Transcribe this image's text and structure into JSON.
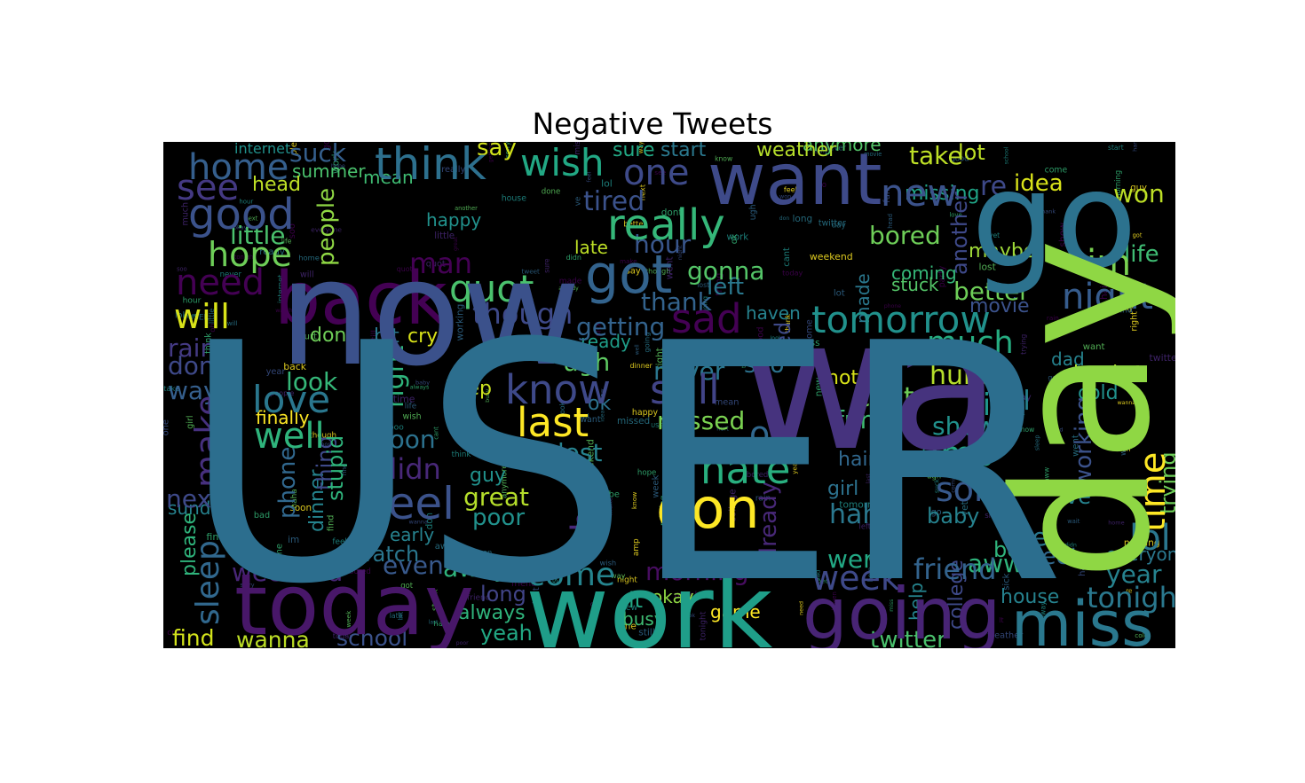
{
  "chart_data": {
    "type": "wordcloud",
    "title": "Negative Tweets",
    "words": [
      {
        "text": "USER",
        "color": "#2c6e8e"
      },
      {
        "text": "now",
        "color": "#3b518b"
      },
      {
        "text": "wa",
        "color": "#46337e"
      },
      {
        "text": "go",
        "color": "#2c728e"
      },
      {
        "text": "day",
        "color": "#8fd744"
      },
      {
        "text": "work",
        "color": "#1f9e89"
      },
      {
        "text": "back",
        "color": "#440154"
      },
      {
        "text": "want",
        "color": "#3e4a89"
      },
      {
        "text": "today",
        "color": "#481769"
      },
      {
        "text": "going",
        "color": "#482475"
      },
      {
        "text": "miss",
        "color": "#2a788e"
      },
      {
        "text": "got",
        "color": "#33638d"
      },
      {
        "text": "good",
        "color": "#3b528b"
      },
      {
        "text": "home",
        "color": "#355f8d"
      },
      {
        "text": "think",
        "color": "#2d708e"
      },
      {
        "text": "really",
        "color": "#35b779"
      },
      {
        "text": "wish",
        "color": "#22a884"
      },
      {
        "text": "quot",
        "color": "#4ac16d"
      },
      {
        "text": "don",
        "color": "#fde725"
      },
      {
        "text": "hate",
        "color": "#29af7f"
      },
      {
        "text": "know",
        "color": "#3e4989"
      },
      {
        "text": "still",
        "color": "#414487"
      },
      {
        "text": "last",
        "color": "#fde725"
      },
      {
        "text": "tomorrow",
        "color": "#21918c"
      },
      {
        "text": "night",
        "color": "#365c8d"
      },
      {
        "text": "im",
        "color": "#7ad151"
      },
      {
        "text": "much",
        "color": "#26ad81"
      },
      {
        "text": "sad",
        "color": "#440154"
      },
      {
        "text": "hope",
        "color": "#6ece58"
      },
      {
        "text": "need",
        "color": "#440154"
      },
      {
        "text": "see",
        "color": "#443983"
      },
      {
        "text": "will",
        "color": "#d8e219"
      },
      {
        "text": "love",
        "color": "#2a778e"
      },
      {
        "text": "feel",
        "color": "#3b528b"
      },
      {
        "text": "well",
        "color": "#2fb47c"
      },
      {
        "text": "make",
        "color": "#46307e"
      },
      {
        "text": "sleep",
        "color": "#31688e"
      },
      {
        "text": "sorry",
        "color": "#38598c"
      },
      {
        "text": "amp",
        "color": "#22a884"
      },
      {
        "text": "sick",
        "color": "#1f958b"
      },
      {
        "text": "time",
        "color": "#fde725"
      },
      {
        "text": "new",
        "color": "#3b528b"
      },
      {
        "text": "one",
        "color": "#3e4a89"
      },
      {
        "text": "week",
        "color": "#3e4989"
      },
      {
        "text": "tonight",
        "color": "#2a788e"
      },
      {
        "text": "lol",
        "color": "#2a768e"
      },
      {
        "text": "come",
        "color": "#25848e"
      },
      {
        "text": "right",
        "color": "#2fb47c"
      },
      {
        "text": "oh",
        "color": "#31688e"
      },
      {
        "text": "twitter",
        "color": "#4ac16d"
      },
      {
        "text": "school",
        "color": "#3b528b"
      },
      {
        "text": "wanna",
        "color": "#bddf26"
      },
      {
        "text": "find",
        "color": "#d2e21b"
      },
      {
        "text": "friend",
        "color": "#33638d"
      },
      {
        "text": "yet",
        "color": "#2a788e"
      },
      {
        "text": "bad",
        "color": "#482878"
      },
      {
        "text": "though",
        "color": "#3e4989"
      },
      {
        "text": "getting",
        "color": "#33638d"
      },
      {
        "text": "missed",
        "color": "#7ad151"
      },
      {
        "text": "didn",
        "color": "#482878"
      },
      {
        "text": "soon",
        "color": "#2c728e"
      },
      {
        "text": "lost",
        "color": "#26828e"
      },
      {
        "text": "great",
        "color": "#b5de2b"
      },
      {
        "text": "away",
        "color": "#2fb47c"
      },
      {
        "text": "morning",
        "color": "#470d60"
      },
      {
        "text": "haha",
        "color": "#2a788e"
      },
      {
        "text": "wait",
        "color": "#20a486"
      },
      {
        "text": "went",
        "color": "#22a884"
      },
      {
        "text": "cant",
        "color": "#6ece58"
      },
      {
        "text": "fun",
        "color": "#3fbc73"
      },
      {
        "text": "hurt",
        "color": "#b5de2b"
      },
      {
        "text": "show",
        "color": "#21918c"
      },
      {
        "text": "look",
        "color": "#35b779"
      },
      {
        "text": "dont",
        "color": "#3e4989"
      },
      {
        "text": "way",
        "color": "#355f8d"
      },
      {
        "text": "rain",
        "color": "#443a83"
      },
      {
        "text": "little",
        "color": "#4ac16d"
      },
      {
        "text": "man",
        "color": "#440154"
      },
      {
        "text": "better",
        "color": "#6ece58"
      },
      {
        "text": "life",
        "color": "#3fbc73"
      },
      {
        "text": "bored",
        "color": "#6ece58"
      },
      {
        "text": "take",
        "color": "#bddf26"
      },
      {
        "text": "won",
        "color": "#bddf26"
      },
      {
        "text": "weekend",
        "color": "#482677"
      },
      {
        "text": "gonna",
        "color": "#54c568"
      },
      {
        "text": "left",
        "color": "#2a788e"
      },
      {
        "text": "hour",
        "color": "#39568c"
      },
      {
        "text": "thank",
        "color": "#33638d"
      },
      {
        "text": "ugh",
        "color": "#5ec962"
      },
      {
        "text": "soo",
        "color": "#2c728e"
      },
      {
        "text": "never",
        "color": "#2a768e"
      },
      {
        "text": "ok",
        "color": "#2c728e"
      },
      {
        "text": "next",
        "color": "#3e4989"
      },
      {
        "text": "watch",
        "color": "#2a778e"
      },
      {
        "text": "even",
        "color": "#38598c"
      },
      {
        "text": "aww",
        "color": "#2fb47c"
      },
      {
        "text": "say",
        "color": "#d2e21b"
      },
      {
        "text": "tired",
        "color": "#3b528b"
      },
      {
        "text": "people",
        "color": "#8fd744"
      },
      {
        "text": "suck",
        "color": "#355f8d"
      },
      {
        "text": "year",
        "color": "#26828e"
      },
      {
        "text": "already",
        "color": "#482878"
      },
      {
        "text": "phone",
        "color": "#31688e"
      },
      {
        "text": "idea",
        "color": "#d8e219"
      },
      {
        "text": "maybe",
        "color": "#a0da39"
      },
      {
        "text": "nothing",
        "color": "#d8e219"
      },
      {
        "text": "working",
        "color": "#3b528b"
      },
      {
        "text": "trying",
        "color": "#6ece58"
      },
      {
        "text": "feeling",
        "color": "#35b779"
      },
      {
        "text": "keep",
        "color": "#cae11f"
      },
      {
        "text": "done",
        "color": "#6ece58"
      },
      {
        "text": "cry",
        "color": "#d8e219"
      },
      {
        "text": "bit",
        "color": "#2a788e"
      },
      {
        "text": "guess",
        "color": "#46327e"
      },
      {
        "text": "please",
        "color": "#2fb47c"
      },
      {
        "text": "early",
        "color": "#26828e"
      },
      {
        "text": "poor",
        "color": "#21918c"
      },
      {
        "text": "boo",
        "color": "#2fb47c"
      },
      {
        "text": "baby",
        "color": "#26828e"
      },
      {
        "text": "girl",
        "color": "#2c728e"
      },
      {
        "text": "hair",
        "color": "#31688e"
      },
      {
        "text": "movie",
        "color": "#3b528b"
      },
      {
        "text": "missing",
        "color": "#20a486"
      },
      {
        "text": "re",
        "color": "#3e4989"
      },
      {
        "text": "lot",
        "color": "#bddf26"
      },
      {
        "text": "sure",
        "color": "#22a884"
      },
      {
        "text": "start",
        "color": "#2a788e"
      },
      {
        "text": "weather",
        "color": "#b5de2b"
      },
      {
        "text": "anymore",
        "color": "#54c568"
      },
      {
        "text": "thing",
        "color": "#3e4a89"
      },
      {
        "text": "stupid",
        "color": "#2fb47c"
      },
      {
        "text": "finally",
        "color": "#fde725"
      },
      {
        "text": "dinner",
        "color": "#25848e"
      },
      {
        "text": "tweet",
        "color": "#31688e"
      },
      {
        "text": "everyone",
        "color": "#2a788e"
      },
      {
        "text": "house",
        "color": "#26828e"
      },
      {
        "text": "okay",
        "color": "#8fd744"
      },
      {
        "text": "busy",
        "color": "#3fbc73"
      },
      {
        "text": "lt",
        "color": "#22a884"
      },
      {
        "text": "long",
        "color": "#414487"
      },
      {
        "text": "always",
        "color": "#2fb47c"
      },
      {
        "text": "yeah",
        "color": "#22a884"
      },
      {
        "text": "help",
        "color": "#25848e"
      },
      {
        "text": "college",
        "color": "#3e4989"
      },
      {
        "text": "sunday",
        "color": "#26828e"
      },
      {
        "text": "hard",
        "color": "#b5de2b"
      },
      {
        "text": "cold",
        "color": "#21918c"
      },
      {
        "text": "party",
        "color": "#3e4989"
      },
      {
        "text": "ready",
        "color": "#1f9e89"
      },
      {
        "text": "game",
        "color": "#fde725"
      },
      {
        "text": "happy",
        "color": "#21918c"
      },
      {
        "text": "head",
        "color": "#bddf26"
      },
      {
        "text": "summer",
        "color": "#4ac16d"
      },
      {
        "text": "internet",
        "color": "#21918c"
      },
      {
        "text": "mean",
        "color": "#3fbc73"
      },
      {
        "text": "another",
        "color": "#3e4989"
      },
      {
        "text": "made",
        "color": "#2a788e"
      },
      {
        "text": "late",
        "color": "#bddf26"
      },
      {
        "text": "bed",
        "color": "#3e4989"
      },
      {
        "text": "guy",
        "color": "#21918c"
      },
      {
        "text": "ve",
        "color": "#26828e"
      },
      {
        "text": "dad",
        "color": "#26828e"
      },
      {
        "text": "ll",
        "color": "#26828e"
      },
      {
        "text": "coming",
        "color": "#35b779"
      },
      {
        "text": "stuck",
        "color": "#54c568"
      },
      {
        "text": "haven",
        "color": "#26828e"
      }
    ]
  }
}
